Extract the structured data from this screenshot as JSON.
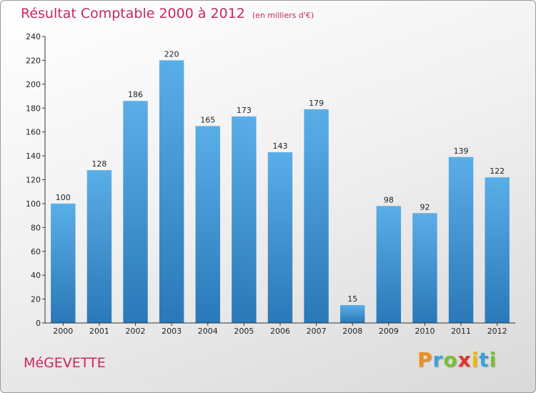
{
  "header": {
    "title": "Résultat Comptable 2000 à 2012",
    "unit": "(en milliers d'€)"
  },
  "footer": {
    "commune": "MéGEVETTE",
    "logo": {
      "letters": [
        "P",
        "r",
        "o",
        "x",
        "i",
        "t",
        "i"
      ],
      "colors": [
        "#f18e1c",
        "#3ea0d9",
        "#7bbf37",
        "#e2342d",
        "#f5b700",
        "#3ea0d9",
        "#7bbf37"
      ]
    }
  },
  "colors": {
    "title": "#c8265f",
    "bar_top": "#5aaee8",
    "bar_bottom": "#2a78b8",
    "axis": "#333333"
  },
  "chart_data": {
    "type": "bar",
    "title": "Résultat Comptable 2000 à 2012",
    "categories": [
      "2000",
      "2001",
      "2002",
      "2003",
      "2004",
      "2005",
      "2006",
      "2007",
      "2008",
      "2009",
      "2010",
      "2011",
      "2012"
    ],
    "values": [
      100,
      128,
      186,
      220,
      165,
      173,
      143,
      179,
      15,
      98,
      92,
      139,
      122
    ],
    "ylim": [
      0,
      240
    ],
    "yticks": [
      0,
      20,
      40,
      60,
      80,
      100,
      120,
      140,
      160,
      180,
      200,
      220,
      240
    ],
    "xlabel": "",
    "ylabel": "",
    "grid": false
  }
}
